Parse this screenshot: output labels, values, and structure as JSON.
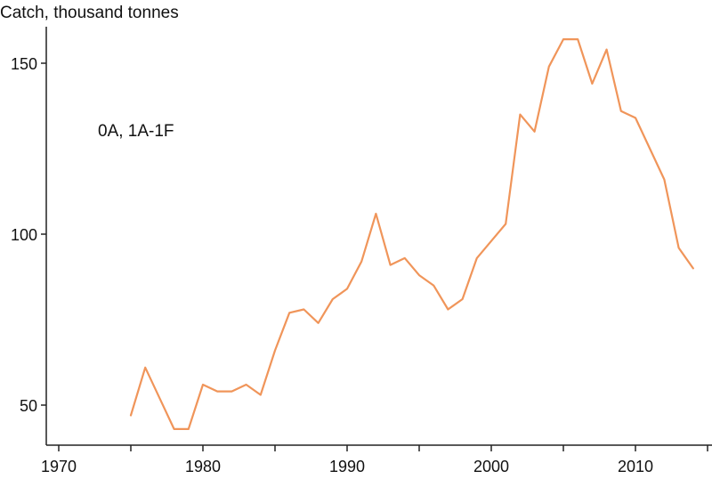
{
  "chart_data": {
    "type": "line",
    "title": "",
    "ylabel": "Catch, thousand tonnes",
    "xlabel": "",
    "annotation": "0A, 1A-1F",
    "xlim": [
      1970,
      2015
    ],
    "ylim": [
      40,
      160
    ],
    "x_ticks": [
      1970,
      1980,
      1990,
      2000,
      2010
    ],
    "x_tick_labels": [
      "1970",
      "1980",
      "1990",
      "2000",
      "2010"
    ],
    "y_ticks": [
      50,
      100,
      150
    ],
    "y_tick_labels": [
      "50",
      "100",
      "150"
    ],
    "grid": false,
    "line_color": "#f0955a",
    "series": [
      {
        "x": [
          1975,
          1976,
          1977,
          1978,
          1979,
          1980,
          1981,
          1982,
          1983,
          1984,
          1985,
          1986,
          1987,
          1988,
          1989,
          1990,
          1991,
          1992,
          1993,
          1994,
          1995,
          1996,
          1997,
          1998,
          1999,
          2000,
          2001,
          2002,
          2003,
          2004,
          2005,
          2006,
          2007,
          2008,
          2009,
          2010,
          2011,
          2012,
          2013,
          2014
        ],
        "values": [
          47,
          61,
          52,
          43,
          43,
          56,
          54,
          54,
          56,
          53,
          66,
          77,
          78,
          74,
          81,
          84,
          92,
          106,
          91,
          93,
          88,
          85,
          78,
          81,
          93,
          98,
          103,
          135,
          130,
          149,
          157,
          157,
          144,
          154,
          136,
          134,
          125,
          116,
          96,
          90
        ]
      }
    ]
  }
}
